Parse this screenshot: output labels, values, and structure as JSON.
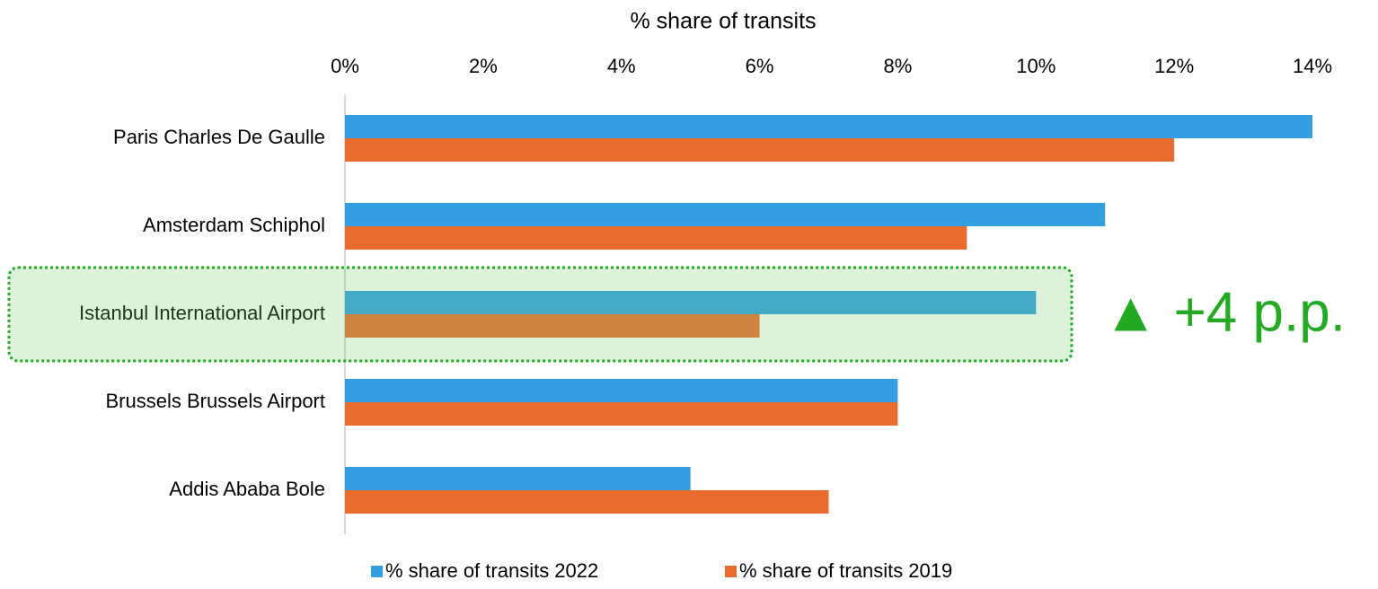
{
  "chart_data": {
    "type": "hbar",
    "x_label": "% share of transits",
    "categories": [
      "Paris Charles De Gaulle",
      "Amsterdam Schiphol",
      "Istanbul International Airport",
      "Brussels Brussels Airport",
      "Addis Ababa Bole"
    ],
    "series": [
      {
        "name": "% share of transits 2022",
        "color": "#339fe0",
        "values": [
          14,
          11,
          10,
          8,
          5
        ]
      },
      {
        "name": "% share of transits 2019",
        "color": "#ea6b2e",
        "values": [
          12,
          9,
          6,
          8,
          7
        ]
      }
    ],
    "xlim": [
      0,
      14
    ],
    "xticks": [
      {
        "value": 0,
        "label": "0%"
      },
      {
        "value": 2,
        "label": "2%"
      },
      {
        "value": 4,
        "label": "4%"
      },
      {
        "value": 6,
        "label": "6%"
      },
      {
        "value": 8,
        "label": "8%"
      },
      {
        "value": 10,
        "label": "10%"
      },
      {
        "value": 12,
        "label": "12%"
      },
      {
        "value": 14,
        "label": "14%"
      }
    ],
    "annotation": "▲ +4 p.p.",
    "legend": "bottom"
  }
}
